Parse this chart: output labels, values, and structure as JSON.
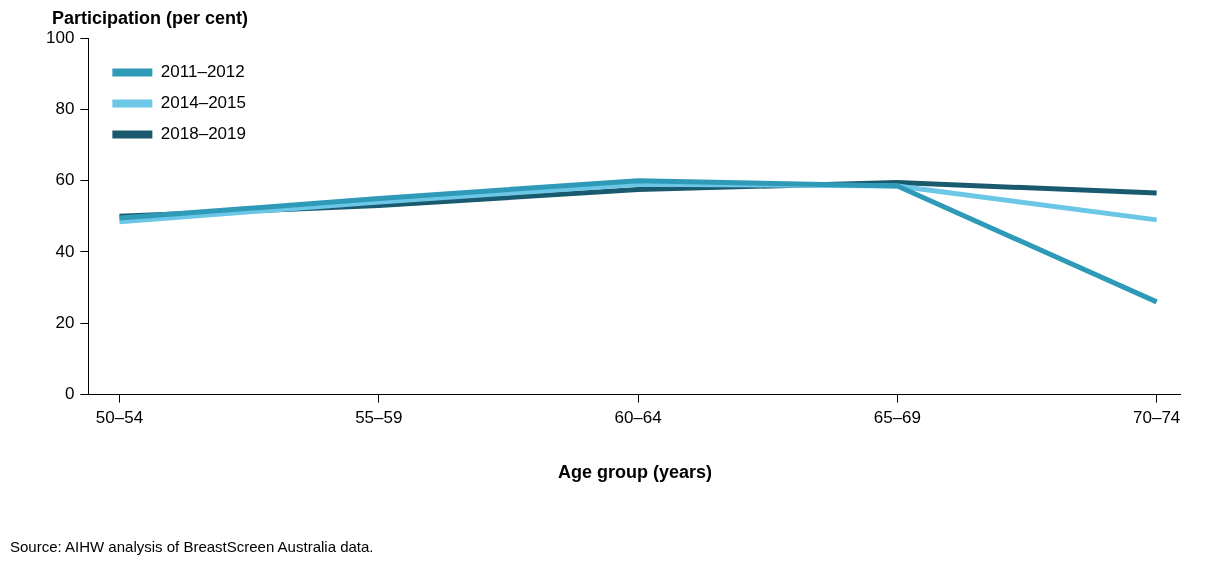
{
  "chart_data": {
    "type": "line",
    "xlabel": "Age group (years)",
    "ylabel": "Participation (per cent)",
    "categories": [
      "50–54",
      "55–59",
      "60–64",
      "65–69",
      "70–74"
    ],
    "series": [
      {
        "name": "2011–2012",
        "color": "#2e9ab8",
        "values": [
          49.5,
          55,
          60,
          58.5,
          26
        ]
      },
      {
        "name": "2014–2015",
        "color": "#6cc6e6",
        "values": [
          48.5,
          54,
          59,
          58.5,
          49
        ]
      },
      {
        "name": "2018–2019",
        "color": "#1a5a6e",
        "values": [
          50,
          53,
          57.5,
          59.5,
          56.5
        ]
      }
    ],
    "ylim": [
      0,
      100
    ],
    "yticks": [
      0,
      20,
      40,
      60,
      80,
      100
    ],
    "grid": false,
    "legend": "top left",
    "marker": "none",
    "line_style": "solid",
    "annotations": [
      "Source: AIHW analysis of BreastScreen Australia data."
    ]
  }
}
